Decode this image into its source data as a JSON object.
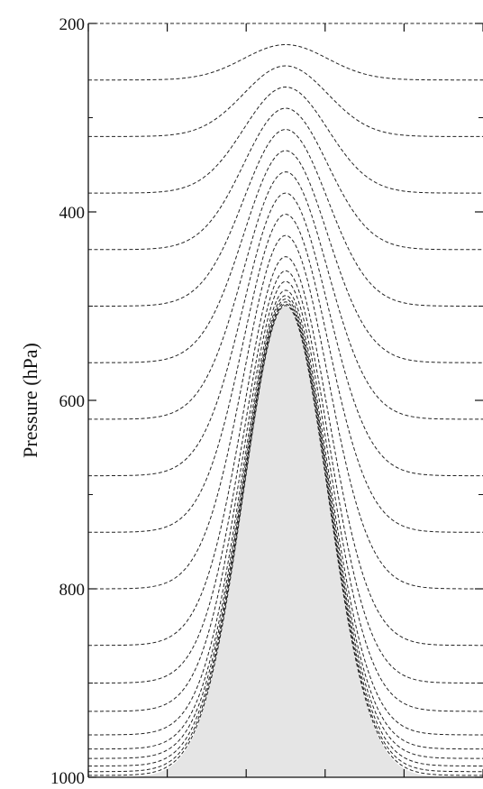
{
  "chart_data": {
    "type": "line",
    "ylabel": "Pressure (hPa)",
    "xlabel": "",
    "yaxis_inverted": true,
    "ylim": [
      1000,
      200
    ],
    "yticks": [
      200,
      400,
      600,
      800,
      1000
    ],
    "xlim": [
      -1,
      1
    ],
    "xticks": [
      -1,
      -0.6,
      -0.2,
      0.2,
      0.6,
      1
    ],
    "xtick_labels_shown": false,
    "grid": false,
    "line_style": "dashed",
    "line_color": "#222222",
    "terrain_fill_color": "#e5e5e5",
    "terrain": {
      "shape": "gaussian",
      "peak_x": 0,
      "peak_pressure": 500,
      "base_pressure": 1000,
      "half_width": 0.3
    },
    "series": [
      {
        "surface_pressure": 200
      },
      {
        "surface_pressure": 260
      },
      {
        "surface_pressure": 320
      },
      {
        "surface_pressure": 380
      },
      {
        "surface_pressure": 440
      },
      {
        "surface_pressure": 500
      },
      {
        "surface_pressure": 560
      },
      {
        "surface_pressure": 620
      },
      {
        "surface_pressure": 680
      },
      {
        "surface_pressure": 740
      },
      {
        "surface_pressure": 800
      },
      {
        "surface_pressure": 860
      },
      {
        "surface_pressure": 900
      },
      {
        "surface_pressure": 930
      },
      {
        "surface_pressure": 955
      },
      {
        "surface_pressure": 970
      },
      {
        "surface_pressure": 980
      },
      {
        "surface_pressure": 988
      },
      {
        "surface_pressure": 994
      },
      {
        "surface_pressure": 998
      }
    ]
  }
}
